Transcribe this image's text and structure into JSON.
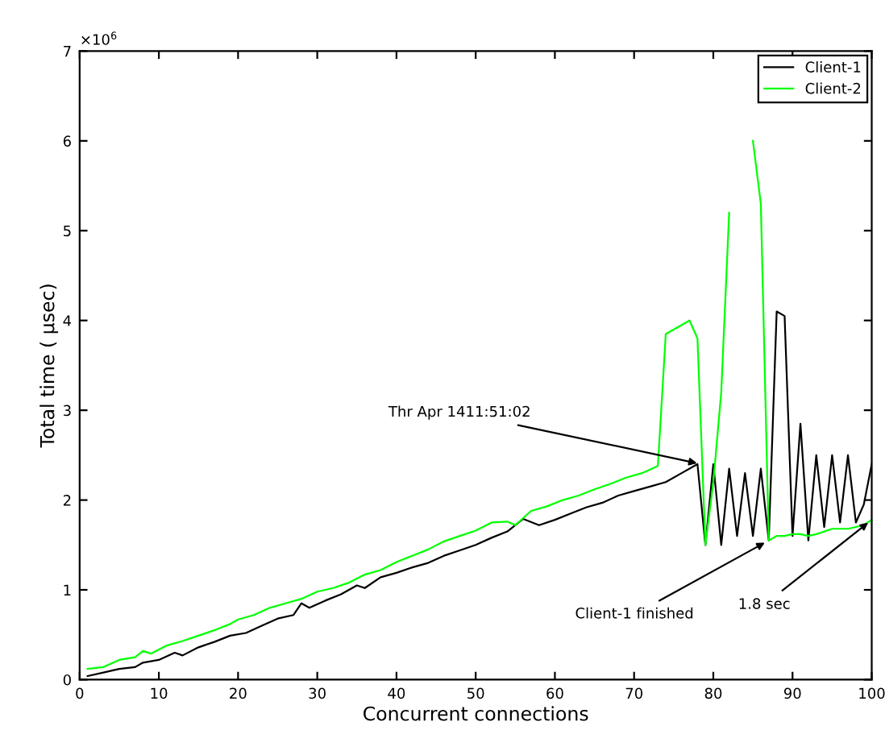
{
  "chart_data": {
    "type": "line",
    "xlabel": "Concurrent connections",
    "ylabel": "Total time ( µsec)",
    "xlim": [
      0,
      100
    ],
    "xticks": [
      0,
      10,
      20,
      30,
      40,
      50,
      60,
      70,
      80,
      90,
      100
    ],
    "ylim": [
      0,
      7
    ],
    "yticks": [
      0,
      1,
      2,
      3,
      4,
      5,
      6,
      7
    ],
    "grid": false,
    "legend": "top right",
    "marker": "none",
    "line_style": "solid",
    "series": [
      {
        "name": "Client-1",
        "color": "#000000",
        "x": [
          1,
          3,
          5,
          7,
          8,
          10,
          12,
          13,
          15,
          17,
          19,
          21,
          23,
          25,
          27,
          28,
          29,
          31,
          33,
          35,
          36,
          38,
          40,
          42,
          44,
          46,
          48,
          50,
          52,
          54,
          56,
          58,
          60,
          62,
          64,
          66,
          68,
          70,
          72,
          74,
          76,
          78,
          79,
          80,
          81,
          82,
          83,
          84,
          85,
          86,
          87,
          88,
          89,
          90,
          91,
          92,
          93,
          94,
          95,
          96,
          97,
          98,
          99,
          100
        ],
        "values": [
          0.04,
          0.08,
          0.12,
          0.14,
          0.19,
          0.22,
          0.3,
          0.27,
          0.36,
          0.42,
          0.49,
          0.52,
          0.6,
          0.68,
          0.72,
          0.85,
          0.8,
          0.88,
          0.95,
          1.05,
          1.02,
          1.14,
          1.19,
          1.25,
          1.3,
          1.38,
          1.44,
          1.5,
          1.58,
          1.65,
          1.79,
          1.72,
          1.78,
          1.85,
          1.92,
          1.97,
          2.05,
          2.1,
          2.15,
          2.2,
          2.3,
          2.4,
          1.5,
          2.4,
          1.5,
          2.35,
          1.6,
          2.3,
          1.6,
          2.35,
          1.55,
          4.1,
          4.05,
          1.6,
          2.85,
          1.55,
          2.5,
          1.7,
          2.5,
          1.75,
          2.5,
          1.75,
          1.95,
          2.4
        ]
      },
      {
        "name": "Client-2",
        "color": "#00ff00",
        "x": [
          1,
          3,
          5,
          7,
          8,
          9,
          11,
          13,
          15,
          17,
          19,
          20,
          22,
          24,
          26,
          28,
          30,
          32,
          34,
          36,
          38,
          40,
          42,
          44,
          46,
          48,
          50,
          52,
          54,
          55,
          57,
          59,
          61,
          63,
          65,
          67,
          69,
          71,
          73,
          74,
          77,
          78,
          79,
          80,
          81,
          82,
          83,
          84,
          85,
          86,
          87,
          88,
          89,
          90,
          91,
          92,
          93,
          94,
          95,
          96,
          97,
          98,
          99,
          100
        ],
        "values": [
          0.12,
          0.14,
          0.22,
          0.25,
          0.32,
          0.29,
          0.38,
          0.43,
          0.49,
          0.55,
          0.62,
          0.67,
          0.72,
          0.8,
          0.85,
          0.9,
          0.98,
          1.02,
          1.08,
          1.17,
          1.22,
          1.31,
          1.38,
          1.45,
          1.54,
          1.6,
          1.66,
          1.75,
          1.76,
          1.72,
          1.88,
          1.93,
          2.0,
          2.05,
          2.12,
          2.18,
          2.25,
          2.3,
          2.38,
          3.85,
          4.0,
          3.8,
          1.5,
          2.2,
          3.2,
          5.2,
          null,
          null,
          6.0,
          5.3,
          1.55,
          1.6,
          1.6,
          1.62,
          1.62,
          1.6,
          1.62,
          1.65,
          1.68,
          1.68,
          1.68,
          1.7,
          1.72,
          1.78
        ]
      }
    ],
    "annotations": [
      "×10$^{6}$",
      {
        "text": "Thr Apr 1411:51:02",
        "x": 78.5,
        "y": 2.4
      },
      {
        "text": "Client-1 finished",
        "x": 87,
        "y": 1.55
      },
      {
        "text": "1.8 sec",
        "x": 100,
        "y": 1.78
      }
    ]
  }
}
